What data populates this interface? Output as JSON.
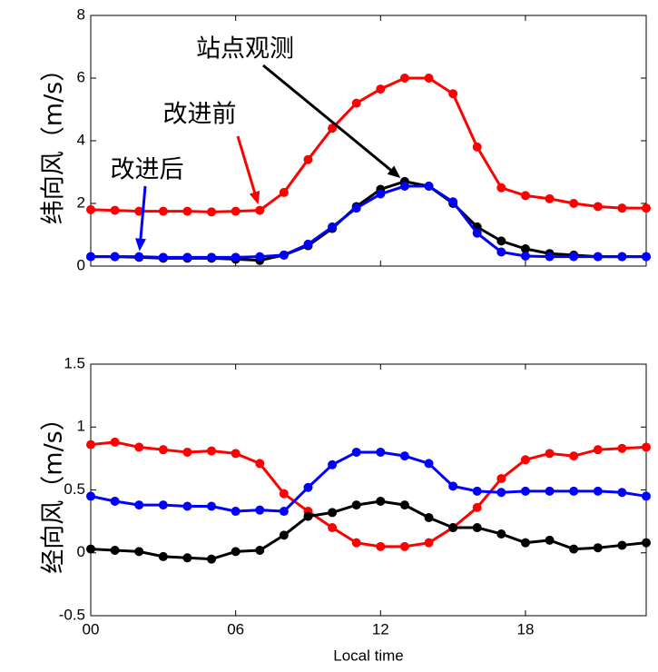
{
  "chart_data": [
    {
      "type": "line",
      "y_label": "纬向风（m/s）",
      "x": [
        0,
        1,
        2,
        3,
        4,
        5,
        6,
        7,
        8,
        9,
        10,
        11,
        12,
        13,
        14,
        15,
        16,
        17,
        18,
        19,
        20,
        21,
        22,
        23
      ],
      "xlim": [
        0,
        23
      ],
      "xticks": [
        0,
        6,
        12,
        18
      ],
      "ylim": [
        0,
        8
      ],
      "yticks": [
        0,
        2,
        4,
        6,
        8
      ],
      "series": [
        {
          "color": "#ff0000",
          "values": [
            1.8,
            1.78,
            1.75,
            1.75,
            1.75,
            1.73,
            1.75,
            1.78,
            2.35,
            3.4,
            4.4,
            5.2,
            5.65,
            6.0,
            6.0,
            5.5,
            3.8,
            2.5,
            2.25,
            2.15,
            2.0,
            1.9,
            1.85,
            1.85
          ]
        },
        {
          "color": "#000000",
          "values": [
            0.3,
            0.3,
            0.28,
            0.25,
            0.25,
            0.25,
            0.22,
            0.18,
            0.35,
            0.65,
            1.2,
            1.9,
            2.45,
            2.7,
            2.55,
            2.0,
            1.25,
            0.8,
            0.55,
            0.4,
            0.35,
            0.3,
            0.3,
            0.3
          ]
        },
        {
          "color": "#0000ff",
          "values": [
            0.3,
            0.3,
            0.3,
            0.28,
            0.28,
            0.28,
            0.28,
            0.3,
            0.35,
            0.7,
            1.25,
            1.85,
            2.3,
            2.55,
            2.55,
            2.05,
            1.05,
            0.45,
            0.32,
            0.3,
            0.3,
            0.3,
            0.3,
            0.3
          ]
        }
      ],
      "annotations": [
        {
          "text": "站点观测",
          "color": "#000000",
          "x": 13,
          "y": 2.7
        },
        {
          "text": "改进前",
          "color": "#ff0000",
          "x": 7,
          "y": 1.8
        },
        {
          "text": "改进后",
          "color": "#0000ff",
          "x": 2,
          "y": 0.3
        }
      ]
    },
    {
      "type": "line",
      "y_label": "经向风（m/s）",
      "x_label": "Local time",
      "x": [
        0,
        1,
        2,
        3,
        4,
        5,
        6,
        7,
        8,
        9,
        10,
        11,
        12,
        13,
        14,
        15,
        16,
        17,
        18,
        19,
        20,
        21,
        22,
        23
      ],
      "xlim": [
        0,
        23
      ],
      "xticks": [
        {
          "value": 0,
          "label": "00"
        },
        {
          "value": 6,
          "label": "06"
        },
        12,
        18
      ],
      "ylim": [
        -0.5,
        1.5
      ],
      "yticks": [
        -0.5,
        0,
        0.5,
        1,
        1.5
      ],
      "series": [
        {
          "color": "#ff0000",
          "values": [
            0.86,
            0.88,
            0.84,
            0.82,
            0.8,
            0.81,
            0.79,
            0.71,
            0.47,
            0.33,
            0.2,
            0.08,
            0.05,
            0.05,
            0.08,
            0.2,
            0.36,
            0.59,
            0.74,
            0.79,
            0.77,
            0.82,
            0.83,
            0.84
          ]
        },
        {
          "color": "#0000ff",
          "values": [
            0.45,
            0.41,
            0.38,
            0.38,
            0.37,
            0.37,
            0.33,
            0.34,
            0.33,
            0.52,
            0.7,
            0.8,
            0.8,
            0.77,
            0.71,
            0.53,
            0.49,
            0.48,
            0.49,
            0.49,
            0.49,
            0.49,
            0.48,
            0.45
          ]
        },
        {
          "color": "#000000",
          "values": [
            0.03,
            0.02,
            0.01,
            -0.03,
            -0.04,
            -0.05,
            0.01,
            0.02,
            0.14,
            0.29,
            0.32,
            0.38,
            0.41,
            0.38,
            0.28,
            0.2,
            0.2,
            0.15,
            0.08,
            0.1,
            0.03,
            0.04,
            0.06,
            0.08
          ]
        }
      ]
    }
  ]
}
